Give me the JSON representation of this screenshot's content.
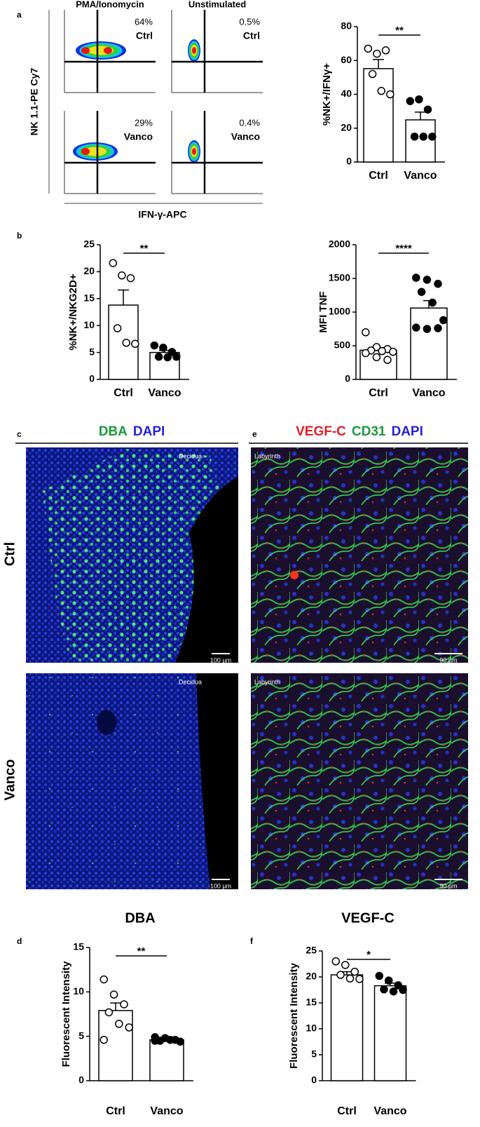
{
  "panel_letters": [
    "a",
    "b",
    "c",
    "d",
    "e",
    "f"
  ],
  "flow": {
    "column_titles": [
      "PMA/Ionomycin",
      "Unstimulated"
    ],
    "y_label": "NK 1.1-PE Cy7",
    "x_label": "IFN-γ-APC",
    "plots": [
      {
        "percent": "64%",
        "group": "Ctrl"
      },
      {
        "percent": "0.5%",
        "group": "Ctrl"
      },
      {
        "percent": "29%",
        "group": "Vanco"
      },
      {
        "percent": "0.4%",
        "group": "Vanco"
      }
    ]
  },
  "images": {
    "headers": [
      {
        "stains": [
          "DBA",
          "DAPI"
        ],
        "colors": [
          "#1a9a3c",
          "#2323d6"
        ]
      },
      {
        "stains": [
          "VEGF-C",
          "CD31",
          "DAPI"
        ],
        "colors": [
          "#e0202a",
          "#1a9a3c",
          "#2323d6"
        ]
      }
    ],
    "row_labels": [
      "Ctrl",
      "Vanco"
    ],
    "panels": [
      {
        "region": "Decidua",
        "scale_bar": "100 µm"
      },
      {
        "region": "Decidua",
        "scale_bar": "100 µm"
      },
      {
        "region": "Labyrinth",
        "scale_bar": "90 µm"
      },
      {
        "region": "Labyrinth",
        "scale_bar": "90 µm"
      }
    ]
  },
  "chart_data": [
    {
      "type": "bar",
      "ylabel": "%NK+/IFNγ+",
      "categories": [
        "Ctrl",
        "Vanco"
      ],
      "values": [
        55.2,
        24.9
      ],
      "errors": [
        5.4,
        4.6
      ],
      "points": [
        [
          67,
          64,
          66,
          52,
          42,
          40
        ],
        [
          36,
          37,
          31,
          15,
          15,
          15
        ]
      ],
      "significance": "**",
      "ylim": [
        0,
        80
      ],
      "yticks": [
        0,
        20,
        40,
        60,
        80
      ],
      "color": "#ffffff",
      "point_colors": [
        "#ffffff",
        "#000000"
      ]
    },
    {
      "type": "bar",
      "ylabel": "%NK+/NKG2D+",
      "categories": [
        "Ctrl",
        "Vanco"
      ],
      "values": [
        13.8,
        5.0
      ],
      "errors": [
        2.8,
        0.4
      ],
      "points": [
        [
          21.6,
          19.3,
          18.8,
          9.5,
          6.8,
          6.6
        ],
        [
          6.3,
          5.9,
          5.1,
          4.2,
          4.1,
          4.2
        ]
      ],
      "significance": "**",
      "ylim": [
        0,
        25
      ],
      "yticks": [
        0,
        5,
        10,
        15,
        20,
        25
      ],
      "color": "#ffffff",
      "point_colors": [
        "#ffffff",
        "#000000"
      ]
    },
    {
      "type": "bar",
      "ylabel": "MFI TNF",
      "categories": [
        "Ctrl",
        "Vanco"
      ],
      "values": [
        433,
        1060
      ],
      "errors": [
        40,
        110
      ],
      "points": [
        [
          700,
          480,
          450,
          430,
          420,
          410,
          390,
          330,
          290
        ],
        [
          1510,
          1480,
          1420,
          1300,
          1140,
          880,
          770,
          750,
          760
        ]
      ],
      "significance": "****",
      "ylim": [
        0,
        2000
      ],
      "yticks": [
        0,
        500,
        1000,
        1500,
        2000
      ],
      "color": "#ffffff",
      "point_colors": [
        "#ffffff",
        "#000000"
      ]
    },
    {
      "type": "bar",
      "title": "DBA",
      "ylabel": "Fluorescent Intensity",
      "categories": [
        "Ctrl",
        "Vanco"
      ],
      "values": [
        7.9,
        4.6
      ],
      "errors": [
        0.85,
        0.15
      ],
      "points": [
        [
          11.4,
          9.7,
          8.6,
          7.7,
          6.4,
          6.0,
          4.6
        ],
        [
          4.9,
          4.8,
          4.6,
          4.5,
          4.6,
          4.4,
          4.5
        ]
      ],
      "significance": "**",
      "ylim": [
        0,
        15
      ],
      "yticks": [
        0,
        5,
        10,
        15
      ],
      "color": "#ffffff",
      "point_colors": [
        "#ffffff",
        "#000000"
      ]
    },
    {
      "type": "bar",
      "title": "VEGF-C",
      "ylabel": "Fluorescent Intensity",
      "categories": [
        "Ctrl",
        "Vanco"
      ],
      "values": [
        20.4,
        18.3
      ],
      "errors": [
        0.6,
        0.5
      ],
      "points": [
        [
          23.0,
          22.3,
          21.0,
          20.4,
          19.7,
          19.6
        ],
        [
          20.2,
          19.3,
          18.4,
          17.6,
          17.2,
          17.5
        ]
      ],
      "significance": "*",
      "ylim": [
        0,
        25
      ],
      "yticks": [
        0,
        5,
        10,
        15,
        20,
        25
      ],
      "color": "#ffffff",
      "point_colors": [
        "#ffffff",
        "#000000"
      ]
    }
  ]
}
